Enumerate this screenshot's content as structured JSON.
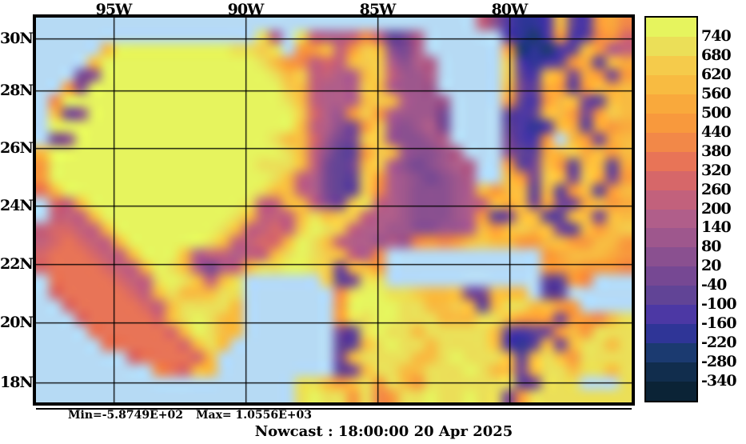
{
  "title": {
    "text": "Nowcast : 18:00:00  20 Apr 2025"
  },
  "stats": {
    "min_label": "Min=-5.8749E+02",
    "max_label": "Max= 1.0556E+03"
  },
  "chart_data": {
    "type": "heatmap",
    "title": "Nowcast : 18:00:00  20 Apr 2025",
    "x_tick_labels": [
      "95W",
      "90W",
      "85W",
      "80W"
    ],
    "y_tick_labels": [
      "30N",
      "28N",
      "26N",
      "24N",
      "22N",
      "20N",
      "18N"
    ],
    "colorbar_tick_labels": [
      "740",
      "680",
      "620",
      "560",
      "500",
      "440",
      "380",
      "320",
      "260",
      "200",
      "140",
      "80",
      "20",
      "-40",
      "-100",
      "-160",
      "-220",
      "-280",
      "-340"
    ],
    "value_range": [
      -400,
      800
    ],
    "contour_interval": 60,
    "min_annotation": "Min=-5.8749E+02",
    "max_annotation": "Max= 1.0556E+03",
    "legend_position": "right",
    "grid_on": true,
    "land_color": "#b6daf4",
    "palette_low_to_high": [
      "#0b2336",
      "#112d4d",
      "#1b3a70",
      "#2f3597",
      "#4c38a4",
      "#614496",
      "#764893",
      "#8a5090",
      "#9e578d",
      "#b05e8a",
      "#c2617c",
      "#d66769",
      "#e87457",
      "#f28848",
      "#f8993d",
      "#f9a93c",
      "#f8bb41",
      "#f5cb4b",
      "#ebdf58",
      "#e6f45e"
    ],
    "level_chars": "abcdefghijklmnopqrst",
    "grid_cols": 46,
    "grid_rows_count": 30,
    "grid_rows": [
      "..................................kheddeqfeopn",
      ".................sj.skjjknkfgj......edceoefnol",
      ".....qtttttttttssrs.ooqkorqhgj......ocdcefqojk",
      "....qttttttttttttsqonklkqrrjhjj.....redefopfqp",
      "...ghtttttttttttttsqrkkjjqrkiij.....rfeqpgpogo",
      "..ohtttttttttttttttrqkjjjrqjiii.....qgfpofoqpq",
      ".ntttttttttttttttttsqkjjjqrqjiii....ofeoqqgfqq",
      ".qghttttttttttttttttrljiorojiiig....fefqqogorq",
      ".tttttttttttttttttttqkjhgorihijg....fedeqpfpop",
      ".ghtttttttttttttttsqqliggrrihhij....geeo.qogpq",
      "qttttttttttttttttttsqkhfforqihhij...hffpqrpqoq",
      "ottttttttttttttttsssqkgfgqrjhghijj..ofgqofqqfp",
      "otttttttttttttttttsqkjgffrojihghij..qogrqgrpgo",
      "mqtttttttttttttttsqqkjgffrnjihhhijqoqqfqfoqfoq",
      ".lkqttttttttttttskkqqkhgrskjihhhijkqpqgpggpqop",
      ".kkkqttttttttttsqkkkqsqrrkjjihhhijofgqqffqqgqq",
      "kllkkqttttttttsqkklkrtsrkjjiihhiijqoqrqqgfqoqr",
      "klmlkkqttttttsqkkllqtsqkjjijinonoqrqqooqqooqqo",
      "lmmmlkkqtttqjkkjkkqstsrqkjn............opqqqpo",
      "lmmmmlkkqtsqjgjkqssttsrgqqo............oopooon",
      ".mmmmmlkkstsqkqs......rfgss............ffon...",
      ".lmmmmmlkqsqqqss.......nsttssrqqqggqqq.ff.....",
      "..lmmmmmlkqssssq.......ottttssqqrqfqssqqoo....",
      "...lmmmmmlqstsqq.......ossttsssqqqssqooogoonqs",
      "....mmmmmmlqtsqq.......gfstssqsssssqfefgoqosss",
      ".....mmmmmmlqsq........ffqstssqssssqedfqgqssqs",
      ".......lmmmmlq.........gqssssqqstsssqfqsqossss",
      ".........nmlqq.........fgqssqqssstsqqgqssqssqs",
      "....................ssqoqsosqosssssssfgsss...s",
      "....................stssosnosstsstssgosssssssst"
    ]
  }
}
